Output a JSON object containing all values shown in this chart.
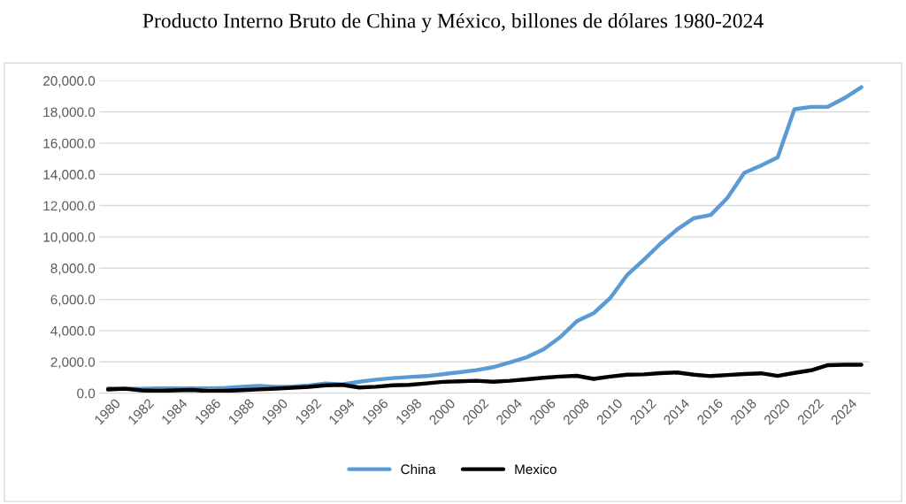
{
  "chart_data": {
    "type": "line",
    "title": "Producto Interno Bruto de China y México, billones de dólares 1980-2024",
    "categories": [
      "1980",
      null,
      "1982",
      null,
      "1984",
      null,
      "1986",
      null,
      "1988",
      null,
      "1990",
      null,
      "1992",
      null,
      "1994",
      null,
      "1996",
      null,
      "1998",
      null,
      "2000",
      null,
      "2002",
      null,
      "2004",
      null,
      "2006",
      null,
      "2008",
      null,
      "2010",
      null,
      "2012",
      null,
      "2014",
      null,
      "2016",
      null,
      "2018",
      null,
      "2020",
      null,
      "2022",
      null,
      "2024",
      null
    ],
    "series": [
      {
        "name": "China",
        "color": "#5b9bd5",
        "values": [
          300,
          290,
          280,
          300,
          310,
          310,
          300,
          330,
          410,
          460,
          400,
          420,
          490,
          620,
          560,
          730,
          860,
          960,
          1030,
          1090,
          1210,
          1340,
          1470,
          1660,
          1960,
          2290,
          2790,
          3570,
          4600,
          5110,
          6090,
          7550,
          8530,
          9570,
          10480,
          11200,
          11400,
          12500,
          14100,
          14560,
          15090,
          18170,
          18320,
          18330,
          18890,
          19580
        ]
      },
      {
        "name": "Mexico",
        "color": "#000000",
        "values": [
          230,
          280,
          180,
          150,
          180,
          200,
          130,
          150,
          190,
          240,
          290,
          340,
          400,
          500,
          530,
          360,
          410,
          500,
          530,
          620,
          720,
          760,
          790,
          730,
          790,
          880,
          980,
          1060,
          1110,
          910,
          1060,
          1180,
          1200,
          1280,
          1320,
          1180,
          1090,
          1160,
          1220,
          1270,
          1100,
          1290,
          1460,
          1790,
          1820,
          1820
        ]
      }
    ],
    "ylim": [
      0,
      20000
    ],
    "yticks": [
      {
        "value": 0,
        "label": "0.0"
      },
      {
        "value": 2000,
        "label": "2,000.0"
      },
      {
        "value": 4000,
        "label": "4,000.0"
      },
      {
        "value": 6000,
        "label": "6,000.0"
      },
      {
        "value": 8000,
        "label": "8,000.0"
      },
      {
        "value": 10000,
        "label": "10,000.0"
      },
      {
        "value": 12000,
        "label": "12,000.0"
      },
      {
        "value": 14000,
        "label": "14,000.0"
      },
      {
        "value": 16000,
        "label": "16,000.0"
      },
      {
        "value": 18000,
        "label": "18,000.0"
      },
      {
        "value": 20000,
        "label": "20,000.0"
      }
    ],
    "grid": "y",
    "legend": "bottom",
    "marker": "none",
    "line_style": "solid"
  }
}
